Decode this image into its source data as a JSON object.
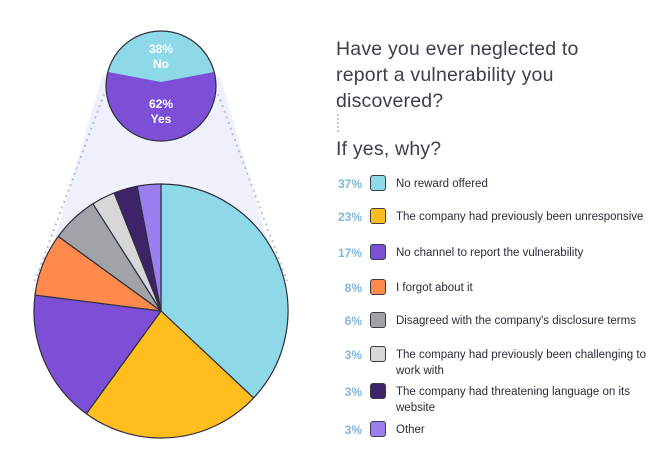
{
  "question": "Have you ever neglected to report a vulnerability you discovered?",
  "subquestion": "If yes, why?",
  "small_pie": {
    "slices": [
      {
        "label": "No",
        "percent": "38%",
        "value": 38,
        "color": "#8dd9e8"
      },
      {
        "label": "Yes",
        "percent": "62%",
        "value": 62,
        "color": "#7d4fd6"
      }
    ]
  },
  "legend": [
    {
      "percent": "37%",
      "label": "No reward offered",
      "color": "#8dd9e8"
    },
    {
      "percent": "23%",
      "label": "The company had previously been unresponsive",
      "color": "#ffbe1e"
    },
    {
      "percent": "17%",
      "label": "No channel to report the vulnerability",
      "color": "#7d4fd6"
    },
    {
      "percent": "8%",
      "label": "I forgot about it",
      "color": "#ff8a4b"
    },
    {
      "percent": "6%",
      "label": "Disagreed with the company's disclosure terms",
      "color": "#a0a3a8"
    },
    {
      "percent": "3%",
      "label": "The company had previously been challenging to work with",
      "color": "#d7d7da"
    },
    {
      "percent": "3%",
      "label": "The company had threatening language on its website",
      "color": "#3d2468"
    },
    {
      "percent": "3%",
      "label": "Other",
      "color": "#9b7ef0"
    }
  ],
  "chart_data": [
    {
      "type": "pie",
      "title": "Have you ever neglected to report a vulnerability you discovered?",
      "categories": [
        "No",
        "Yes"
      ],
      "values": [
        38,
        62
      ],
      "colors": [
        "#8dd9e8",
        "#7d4fd6"
      ]
    },
    {
      "type": "pie",
      "title": "If yes, why?",
      "categories": [
        "No reward offered",
        "The company had previously been unresponsive",
        "No channel to report the vulnerability",
        "I forgot about it",
        "Disagreed with the company's disclosure terms",
        "The company had previously been challenging to work with",
        "The company had threatening language on its website",
        "Other"
      ],
      "values": [
        37,
        23,
        17,
        8,
        6,
        3,
        3,
        3
      ],
      "colors": [
        "#8dd9e8",
        "#ffbe1e",
        "#7d4fd6",
        "#ff8a4b",
        "#a0a3a8",
        "#d7d7da",
        "#3d2468",
        "#9b7ef0"
      ]
    }
  ]
}
